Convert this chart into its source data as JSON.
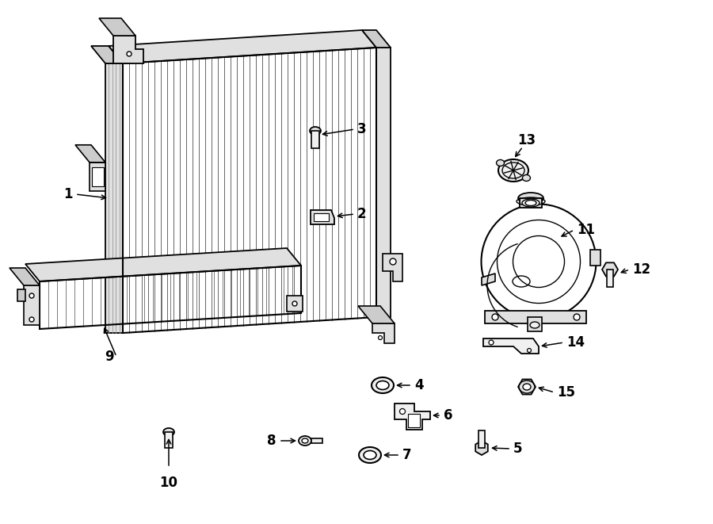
{
  "background_color": "#ffffff",
  "line_color": "#000000",
  "fin_color": "#555555",
  "fill_light": "#f0f0f0",
  "fill_mid": "#e0e0e0",
  "fill_dark": "#cccccc"
}
